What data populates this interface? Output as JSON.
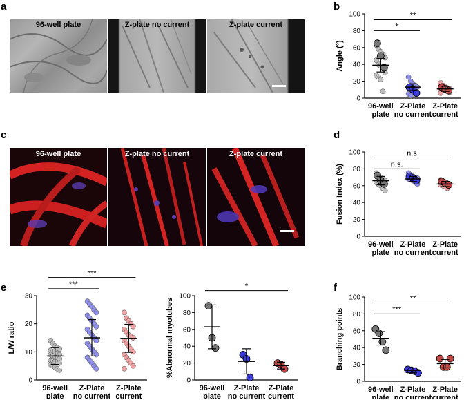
{
  "panels": {
    "a": {
      "letter": "a",
      "titles": [
        "96-well plate",
        "Z-plate no current",
        "Z-plate current"
      ]
    },
    "c": {
      "letter": "c",
      "titles": [
        "96-well plate",
        "Z-plate no current",
        "Z-plate current"
      ]
    },
    "b": {
      "letter": "b"
    },
    "d": {
      "letter": "d"
    },
    "e": {
      "letter": "e"
    },
    "f": {
      "letter": "f"
    }
  },
  "colors": {
    "gray": "#777777",
    "blue": "#3b3bd6",
    "red": "#c24848",
    "gray_light": "#bdbdbd",
    "blue_light": "#8f8fee",
    "red_light": "#f0a0a0"
  },
  "chart_data": [
    {
      "id": "b",
      "type": "scatter",
      "ylabel": "Angle (°)",
      "ylim": [
        0,
        100
      ],
      "yticks": [
        0,
        20,
        40,
        60,
        80,
        100
      ],
      "categories": [
        [
          "96-well",
          "plate"
        ],
        [
          "Z-Plate",
          "no current"
        ],
        [
          "Z-Plate",
          "current"
        ]
      ],
      "mean": [
        39,
        13,
        11
      ],
      "err": [
        8,
        4,
        3
      ],
      "points": [
        [
          63,
          58,
          55,
          52,
          48,
          45,
          40,
          38,
          35,
          30,
          27,
          25,
          22,
          8
        ],
        [
          25,
          20,
          17,
          15,
          13,
          12,
          11,
          10,
          9,
          7,
          5,
          3
        ],
        [
          18,
          15,
          14,
          12,
          11,
          10,
          10,
          9,
          8,
          7,
          6
        ]
      ],
      "big": [
        [
          65,
          50,
          36
        ],
        [
          13,
          10,
          6
        ],
        [
          13,
          11,
          9
        ]
      ],
      "sig": [
        {
          "from": 0,
          "to": 1,
          "label": "*",
          "y": 80
        },
        {
          "from": 0,
          "to": 2,
          "label": "**",
          "y": 93
        }
      ]
    },
    {
      "id": "d",
      "type": "scatter",
      "ylabel": "Fusion Index (%)",
      "ylim": [
        0,
        100
      ],
      "yticks": [
        0,
        20,
        40,
        60,
        80,
        100
      ],
      "categories": [
        [
          "96-well",
          "plate"
        ],
        [
          "Z-Plate",
          "no current"
        ],
        [
          "Z-Plate",
          "current"
        ]
      ],
      "mean": [
        66,
        68,
        62
      ],
      "err": [
        5,
        3,
        3
      ],
      "points": [
        [
          75,
          73,
          70,
          68,
          66,
          64,
          62,
          60,
          57,
          54
        ],
        [
          75,
          73,
          71,
          70,
          69,
          68,
          67,
          66,
          64,
          62
        ],
        [
          67,
          65,
          64,
          63,
          62,
          61,
          60,
          59,
          57
        ]
      ],
      "big": [
        [
          72,
          66,
          62
        ],
        [
          71,
          69,
          66
        ],
        [
          65,
          63,
          61
        ]
      ],
      "sig": [
        {
          "from": 0,
          "to": 1,
          "label": "n.s.",
          "y": 80
        },
        {
          "from": 0,
          "to": 2,
          "label": "n.s.",
          "y": 93
        }
      ]
    },
    {
      "id": "e1",
      "type": "scatter",
      "ylabel": "L/W ratio",
      "ylim": [
        0,
        30
      ],
      "yticks": [
        0,
        10,
        20,
        30
      ],
      "categories": [
        [
          "96-well",
          "plate"
        ],
        [
          "Z-Plate",
          "no current"
        ],
        [
          "Z-Plate",
          "current"
        ]
      ],
      "mean": [
        8.5,
        15,
        14.8
      ],
      "err": [
        3,
        6.5,
        5
      ],
      "points": [
        [
          14,
          13,
          12,
          11.5,
          11,
          10.5,
          10,
          10,
          9.5,
          9,
          9,
          8.5,
          8,
          8,
          7.5,
          7,
          7,
          6.5,
          6,
          6,
          5.5,
          5,
          4.5,
          4,
          3.5
        ],
        [
          28,
          27,
          26,
          25,
          24,
          23,
          22,
          21,
          20,
          19,
          18,
          17,
          16,
          15,
          14,
          13,
          12,
          11,
          10,
          9,
          8,
          7,
          6,
          5,
          4
        ],
        [
          24,
          22,
          21,
          20,
          19,
          18,
          17,
          16,
          15.5,
          15,
          14,
          13,
          12,
          11,
          10,
          9,
          8,
          7,
          6,
          5,
          4
        ]
      ],
      "big": [],
      "sig": [
        {
          "from": 0,
          "to": 1,
          "label": "***",
          "y": 32.5
        },
        {
          "from": 0,
          "to": 2,
          "label": "***",
          "y": 36.5
        }
      ]
    },
    {
      "id": "e2",
      "type": "scatter",
      "ylabel": "%Abnormal myotubes",
      "ylim": [
        0,
        100
      ],
      "yticks": [
        0,
        20,
        40,
        60,
        80,
        100
      ],
      "categories": [
        [
          "96-well",
          "plate"
        ],
        [
          "Z-Plate",
          "no current"
        ],
        [
          "Z-Plate",
          "current"
        ]
      ],
      "mean": [
        63,
        22,
        17
      ],
      "err": [
        26,
        15,
        4
      ],
      "points": [],
      "big": [
        [
          88,
          50,
          38
        ],
        [
          30,
          25,
          3
        ],
        [
          20,
          18,
          13
        ]
      ],
      "sig": [
        {
          "from": 0,
          "to": 2,
          "label": "*",
          "y": 106
        }
      ]
    },
    {
      "id": "f",
      "type": "scatter",
      "ylabel": "Branching points",
      "ylim": [
        0,
        100
      ],
      "yticks": [
        0,
        20,
        40,
        60,
        80,
        100
      ],
      "categories": [
        [
          "96-well",
          "plate"
        ],
        [
          "Z-Plate",
          "no current"
        ],
        [
          "Z-Plate",
          "current"
        ]
      ],
      "mean": [
        51,
        13,
        21
      ],
      "err": [
        8,
        3,
        5
      ],
      "points": [],
      "big": [
        [
          62,
          57,
          47,
          37
        ],
        [
          14,
          13,
          12,
          10
        ],
        [
          27,
          17,
          17,
          27
        ]
      ],
      "sig": [
        {
          "from": 0,
          "to": 1,
          "label": "***",
          "y": 80
        },
        {
          "from": 0,
          "to": 2,
          "label": "**",
          "y": 93
        }
      ]
    }
  ]
}
